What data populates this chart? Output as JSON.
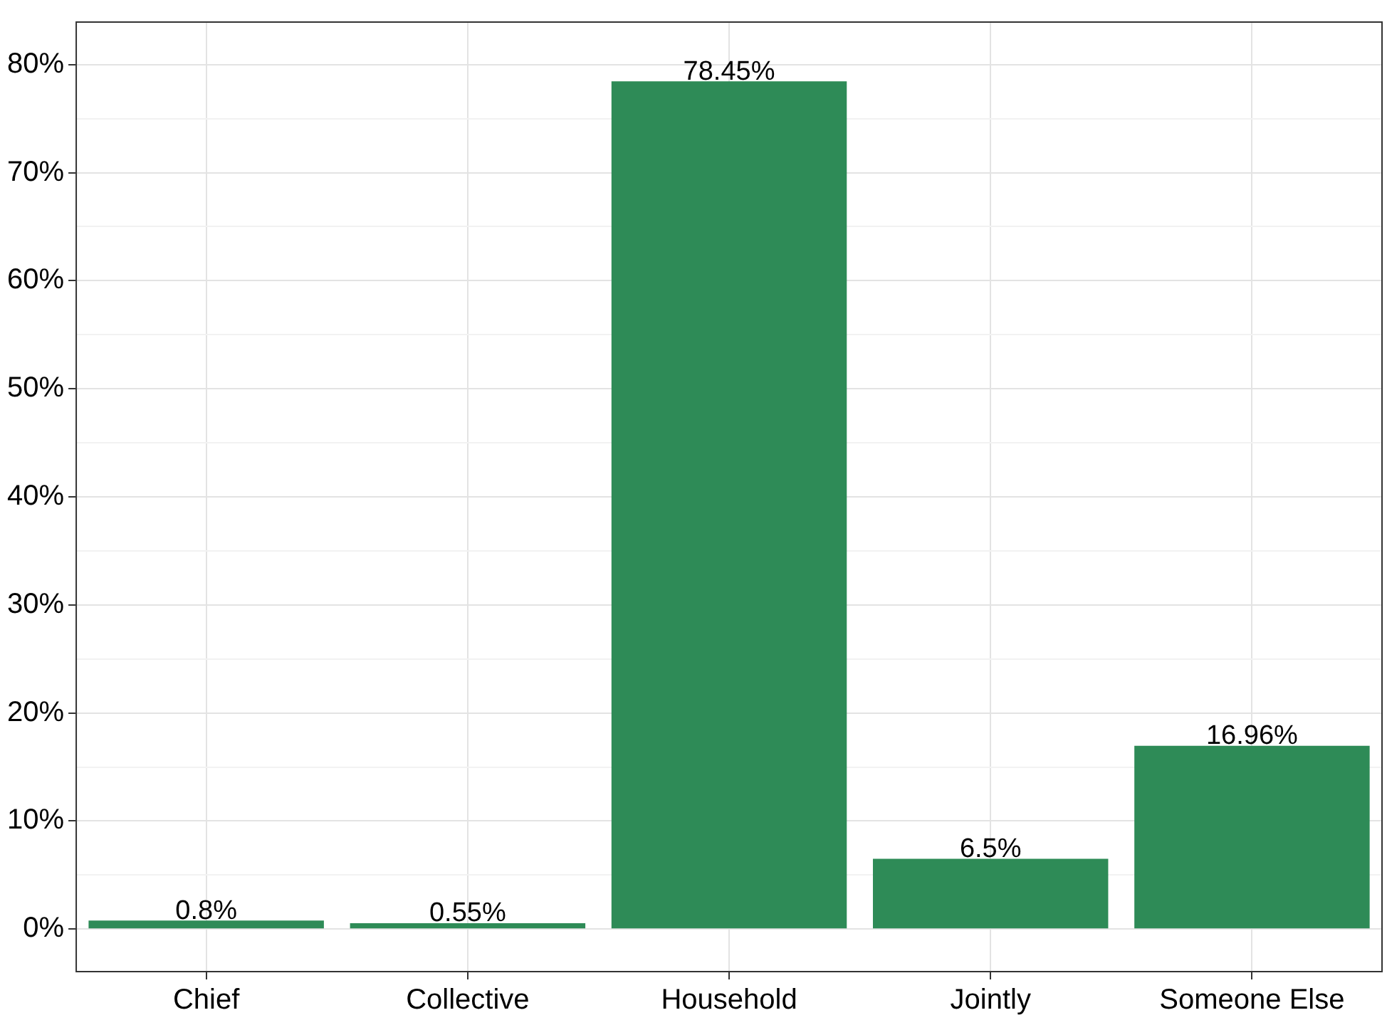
{
  "chart_data": {
    "type": "bar",
    "categories": [
      "Chief",
      "Collective",
      "Household",
      "Jointly",
      "Someone Else"
    ],
    "values": [
      0.8,
      0.55,
      78.45,
      6.5,
      16.96
    ],
    "value_labels": [
      "0.8%",
      "0.55%",
      "78.45%",
      "6.5%",
      "16.96%"
    ],
    "color": "#2e8b57",
    "ylim": [
      -4,
      84
    ],
    "yticks": [
      {
        "value": 0,
        "label": "0%"
      },
      {
        "value": 5,
        "label": null
      },
      {
        "value": 10,
        "label": "10%"
      },
      {
        "value": 15,
        "label": null
      },
      {
        "value": 20,
        "label": "20%"
      },
      {
        "value": 25,
        "label": null
      },
      {
        "value": 30,
        "label": "30%"
      },
      {
        "value": 35,
        "label": null
      },
      {
        "value": 40,
        "label": "40%"
      },
      {
        "value": 45,
        "label": null
      },
      {
        "value": 50,
        "label": "50%"
      },
      {
        "value": 55,
        "label": null
      },
      {
        "value": 60,
        "label": "60%"
      },
      {
        "value": 65,
        "label": null
      },
      {
        "value": 70,
        "label": "70%"
      },
      {
        "value": 75,
        "label": null
      },
      {
        "value": 80,
        "label": "80%"
      }
    ],
    "grid": true
  }
}
